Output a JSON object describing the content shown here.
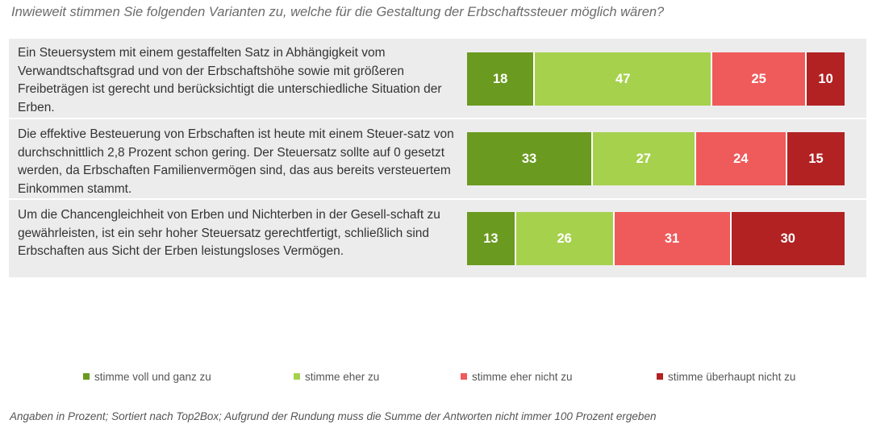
{
  "chart_data": {
    "type": "bar",
    "stacked": true,
    "orientation": "horizontal",
    "title": "Inwieweit stimmen Sie folgenden Varianten zu, welche für die Gestaltung der Erbschaftssteuer möglich wären?",
    "categories": [
      "Ein Steuersystem mit einem gestaffelten Satz in Abhängigkeit vom Verwandtschaftsgrad und von der Erbschaftshöhe sowie mit größeren Freibeträgen ist gerecht und berücksichtigt die unterschiedliche Situation der Erben.",
      "Die effektive Besteuerung von Erbschaften ist heute mit einem Steuer-satz von durchschnittlich 2,8 Prozent schon gering. Der Steuersatz sollte auf 0 gesetzt werden, da Erbschaften Familienvermögen sind, das aus bereits versteuertem Einkommen stammt.",
      "Um die Chancengleichheit von Erben und Nichterben in der Gesell-schaft zu gewährleisten, ist ein sehr hoher Steuersatz gerechtfertigt, schließlich sind Erbschaften aus Sicht der Erben leistungsloses Vermögen."
    ],
    "series": [
      {
        "name": "stimme voll und ganz zu",
        "color": "#6a9a1f",
        "values": [
          18,
          33,
          13
        ]
      },
      {
        "name": "stimme eher zu",
        "color": "#a6d14d",
        "values": [
          47,
          27,
          26
        ]
      },
      {
        "name": "stimme eher nicht zu",
        "color": "#ef5a5a",
        "values": [
          25,
          24,
          31
        ]
      },
      {
        "name": "stimme überhaupt nicht zu",
        "color": "#b22222",
        "values": [
          10,
          15,
          30
        ]
      }
    ],
    "legend_position": "bottom",
    "grid": false,
    "footnote": "Angaben in Prozent; Sortiert nach Top2Box; Aufgrund der Rundung muss die Summe der Antworten nicht immer 100 Prozent ergeben"
  }
}
